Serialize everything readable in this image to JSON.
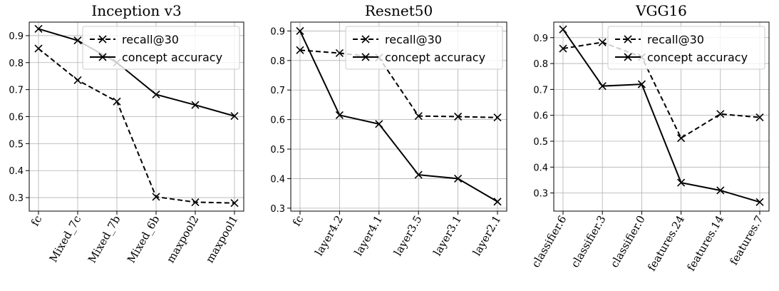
{
  "chart_data": [
    {
      "type": "line",
      "title": "Inception v3",
      "categories": [
        "fc",
        "Mixed_7c",
        "Mixed_7b",
        "Mixed_6b",
        "maxpool2",
        "maxpool1"
      ],
      "series": [
        {
          "name": "recall@30",
          "values": [
            0.852,
            0.735,
            0.656,
            0.303,
            0.283,
            0.28
          ]
        },
        {
          "name": "concept accuracy",
          "values": [
            0.925,
            0.882,
            0.8,
            0.682,
            0.643,
            0.602
          ]
        }
      ],
      "ylim": [
        0.25,
        0.95
      ],
      "yticks": [
        "0.3",
        "0.4",
        "0.5",
        "0.6",
        "0.7",
        "0.8",
        "0.9"
      ],
      "grid": true,
      "legend": "top-right"
    },
    {
      "type": "line",
      "title": "Resnet50",
      "categories": [
        "fc",
        "layer4.2",
        "layer4.1",
        "layer3.5",
        "layer3.1",
        "layer2.1"
      ],
      "series": [
        {
          "name": "recall@30",
          "values": [
            0.835,
            0.825,
            0.81,
            0.612,
            0.61,
            0.607
          ]
        },
        {
          "name": "concept accuracy",
          "values": [
            0.9,
            0.615,
            0.585,
            0.413,
            0.4,
            0.322
          ]
        }
      ],
      "ylim": [
        0.29,
        0.93
      ],
      "yticks": [
        "0.3",
        "0.4",
        "0.5",
        "0.6",
        "0.7",
        "0.8",
        "0.9"
      ],
      "grid": true,
      "legend": "top-right"
    },
    {
      "type": "line",
      "title": "VGG16",
      "categories": [
        "classifier.6",
        "classifier.3",
        "classifier.0",
        "features.24",
        "features.14",
        "features.7"
      ],
      "series": [
        {
          "name": "recall@30",
          "values": [
            0.858,
            0.882,
            0.825,
            0.512,
            0.605,
            0.592
          ]
        },
        {
          "name": "concept accuracy",
          "values": [
            0.932,
            0.713,
            0.72,
            0.34,
            0.31,
            0.265
          ]
        }
      ],
      "ylim": [
        0.23,
        0.96
      ],
      "yticks": [
        "0.3",
        "0.4",
        "0.5",
        "0.6",
        "0.7",
        "0.8",
        "0.9"
      ],
      "grid": true,
      "legend": "top-right"
    }
  ]
}
